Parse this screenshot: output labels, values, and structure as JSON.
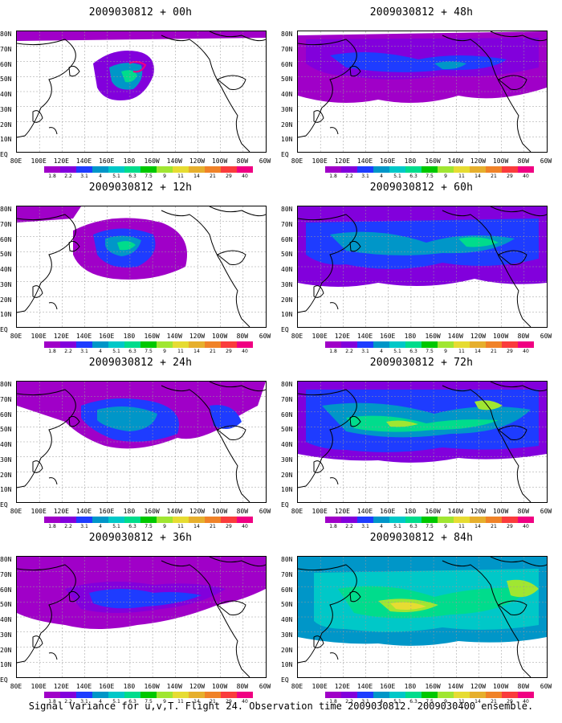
{
  "panels": [
    {
      "title": "2009030812 + 00h"
    },
    {
      "title": "2009030812 + 48h"
    },
    {
      "title": "2009030812 + 12h"
    },
    {
      "title": "2009030812 + 60h"
    },
    {
      "title": "2009030812 + 24h"
    },
    {
      "title": "2009030812 + 72h"
    },
    {
      "title": "2009030812 + 36h"
    },
    {
      "title": "2009030812 + 84h"
    }
  ],
  "y_labels": [
    "80N",
    "70N",
    "60N",
    "50N",
    "40N",
    "30N",
    "20N",
    "10N",
    "EQ"
  ],
  "x_labels": [
    "80E",
    "100E",
    "120E",
    "140E",
    "160E",
    "180",
    "160W",
    "140W",
    "120W",
    "100W",
    "80W",
    "60W"
  ],
  "colorbar": {
    "colors": [
      "#a000c8",
      "#8200dc",
      "#1e3cff",
      "#0096c8",
      "#00c8c8",
      "#00dc8c",
      "#00c800",
      "#a0e632",
      "#e6dc32",
      "#e6af2d",
      "#f08228",
      "#fa3c3c",
      "#f00082"
    ],
    "labels": [
      "1.8",
      "2.2",
      "3.1",
      "4",
      "5.1",
      "6.3",
      "7.5",
      "9",
      "11",
      "14",
      "21",
      "29",
      "40"
    ]
  },
  "caption": "Signal Variance for u,v,T. Flight 24. Observation time 2009030812. 2009030400 ensemble."
}
